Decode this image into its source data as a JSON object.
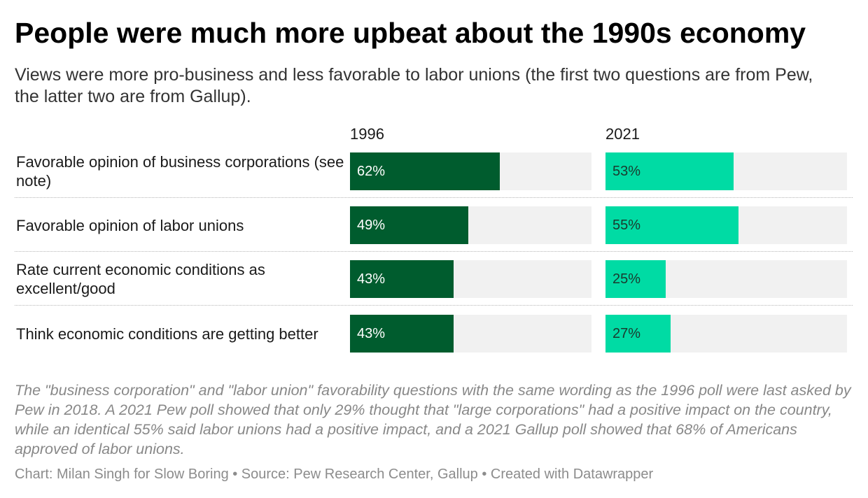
{
  "header": {
    "title": "People were much more upbeat about the 1990s economy",
    "subtitle": "Views were more pro-business and less favorable to labor unions (the first two questions are from Pew, the latter two are from Gallup)."
  },
  "colors": {
    "series_1996": "#005c2e",
    "series_2021": "#00dba4",
    "track": "#f1f1f1",
    "label_1996": "#ffffff",
    "label_2021": "#1a3a2e"
  },
  "chart_data": {
    "type": "bar",
    "title": "People were much more upbeat about the 1990s economy",
    "subtitle": "Views were more pro-business and less favorable to labor unions (the first two questions are from Pew, the latter two are from Gallup).",
    "categories": [
      "Favorable opinion of business corporations (see note)",
      "Favorable opinion of labor unions",
      "Rate current economic conditions as excellent/good",
      "Think economic conditions are getting better"
    ],
    "series": [
      {
        "name": "1996",
        "values": [
          62,
          49,
          43,
          43
        ],
        "labels": [
          "62%",
          "49%",
          "43%",
          "43%"
        ]
      },
      {
        "name": "2021",
        "values": [
          53,
          55,
          25,
          27
        ],
        "labels": [
          "53%",
          "55%",
          "25%",
          "27%"
        ]
      }
    ],
    "xlim": [
      0,
      100
    ],
    "grid": false,
    "note": "The \"business corporation\" and \"labor union\" favorability questions with the same wording as the 1996 poll were last asked by Pew in 2018. A 2021 Pew poll showed that only 29% thought that \"large corporations\" had a positive impact on the country, while an identical 55% said labor unions had a positive impact, and a 2021 Gallup poll showed that 68% of Americans approved of labor unions.",
    "footer": "Chart: Milan Singh for Slow Boring • Source: Pew Research Center, Gallup • Created with Datawrapper"
  }
}
